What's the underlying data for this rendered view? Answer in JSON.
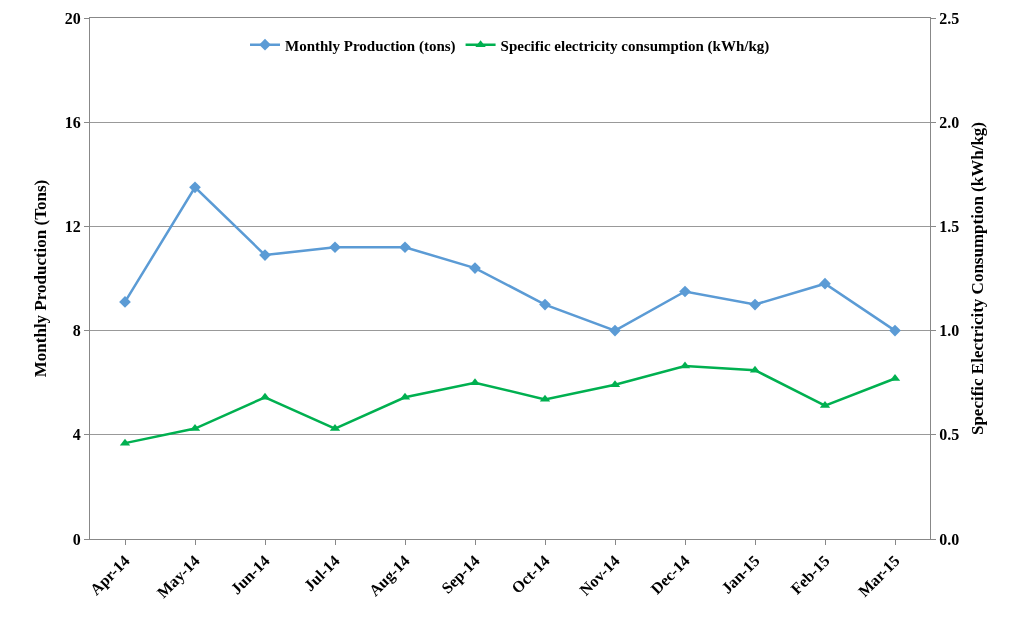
{
  "chart_data": {
    "type": "line",
    "xlabel": null,
    "ylabel": "Monthly Production (Tons)",
    "y2label": "Specific Electricity Consumption (kWh/kg)",
    "categories": [
      "Apr-14",
      "May-14",
      "Jun-14",
      "Jul-14",
      "Aug-14",
      "Sep-14",
      "Oct-14",
      "Nov-14",
      "Dec-14",
      "Jan-15",
      "Feb-15",
      "Mar-15"
    ],
    "series": [
      {
        "name": "Monthly Production (tons)",
        "color": "#5b9bd5",
        "marker": "diamond",
        "values": [
          9.1,
          13.5,
          10.9,
          11.2,
          11.2,
          10.4,
          9.0,
          8.0,
          9.5,
          9.0,
          9.8,
          8.0
        ]
      },
      {
        "name": "Specific electricity consumption (kWh/kg)",
        "color": "#00b050",
        "marker": "triangle",
        "axis": "y2",
        "values": [
          0.46,
          0.53,
          0.68,
          0.53,
          0.68,
          0.75,
          0.67,
          0.74,
          0.83,
          0.81,
          0.64,
          0.77
        ]
      }
    ],
    "ylim": [
      0,
      20
    ],
    "yticks": [
      0,
      4,
      8,
      12,
      16,
      20
    ],
    "y2lim": [
      0,
      2.5
    ],
    "y2ticks": [
      {
        "value": 0,
        "label": "0.0"
      },
      {
        "value": 0.5,
        "label": "0.5"
      },
      {
        "value": 1,
        "label": "1.0"
      },
      {
        "value": 1.5,
        "label": "1.5"
      },
      {
        "value": 2,
        "label": "2.0"
      },
      {
        "value": 2.5,
        "label": "2.5"
      }
    ],
    "grid": "y",
    "legend": "top",
    "line_style": "solid"
  }
}
